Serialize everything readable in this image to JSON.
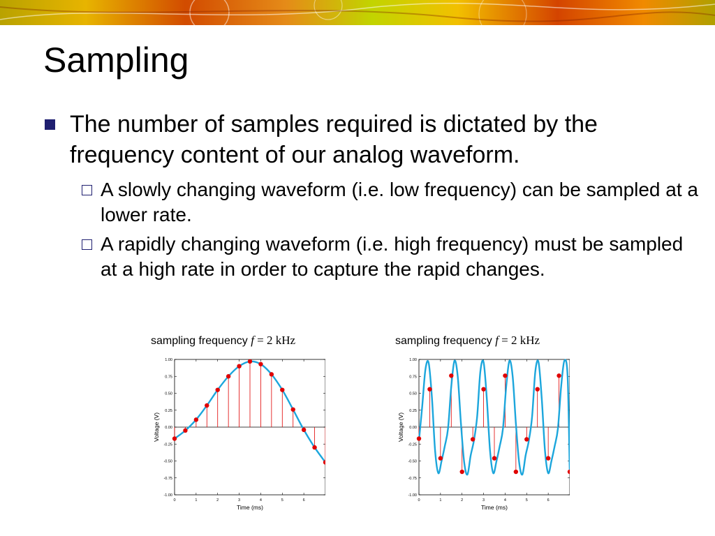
{
  "slide": {
    "title": "Sampling",
    "bullet": "The number of samples required is dictated by the frequency content of our analog waveform.",
    "sub_bullets": [
      "A slowly changing waveform (i.e. low frequency) can be sampled at a lower rate.",
      "A rapidly changing waveform (i.e. high frequency) must be sampled at a high rate in order to capture the rapid changes."
    ]
  },
  "colors": {
    "waveform": "#1ca6dc",
    "sample_point": "#e00000",
    "stem": "#e00000",
    "bullet_marker": "#1f1f70"
  },
  "chart_data": [
    {
      "type": "line",
      "caption_prefix": "sampling frequency ",
      "caption_var": "f",
      "caption_rest": " = 2 kHz",
      "xlabel": "Time (ms)",
      "ylabel": "Voltage (V)",
      "xlim": [
        0,
        7
      ],
      "ylim": [
        -1.0,
        1.0
      ],
      "xticks": [
        "0",
        "1",
        "2",
        "3",
        "4",
        "5",
        "6"
      ],
      "yticks": [
        "1.00",
        "0.75",
        "0.50",
        "0.25",
        "0.00",
        "-0.25",
        "-0.50",
        "-0.75",
        "-1.00"
      ],
      "series": [
        {
          "kind": "waveform",
          "x": [
            0,
            0.5,
            1,
            1.5,
            2,
            2.5,
            3,
            3.5,
            4,
            4.5,
            5,
            5.5,
            6,
            6.5,
            7
          ],
          "y": [
            -0.17,
            -0.05,
            0.11,
            0.32,
            0.55,
            0.75,
            0.9,
            0.97,
            0.93,
            0.78,
            0.55,
            0.26,
            -0.04,
            -0.3,
            -0.52
          ]
        },
        {
          "kind": "samples",
          "x": [
            0,
            0.5,
            1,
            1.5,
            2,
            2.5,
            3,
            3.5,
            4,
            4.5,
            5,
            5.5,
            6,
            6.5,
            7
          ],
          "y": [
            -0.17,
            -0.05,
            0.11,
            0.32,
            0.55,
            0.75,
            0.9,
            0.97,
            0.93,
            0.78,
            0.55,
            0.26,
            -0.04,
            -0.3,
            -0.52
          ]
        }
      ]
    },
    {
      "type": "line",
      "caption_prefix": "sampling frequency ",
      "caption_var": "f",
      "caption_rest": " = 2 kHz",
      "xlabel": "Time (ms)",
      "ylabel": "Voltage (V)",
      "xlim": [
        0,
        7
      ],
      "ylim": [
        -1.0,
        1.0
      ],
      "xticks": [
        "0",
        "1",
        "2",
        "3",
        "4",
        "5",
        "6"
      ],
      "yticks": [
        "1.00",
        "0.75",
        "0.50",
        "0.25",
        "0.00",
        "-0.25",
        "-0.50",
        "-0.75",
        "-1.00"
      ],
      "series": [
        {
          "kind": "waveform",
          "x": [
            0,
            0.15,
            0.3,
            0.45,
            0.6,
            0.75,
            0.9,
            1.05,
            1.2,
            1.35,
            1.5,
            1.65,
            1.8,
            1.95,
            2.1,
            2.25,
            2.4,
            2.55,
            2.7,
            2.85,
            3.0,
            3.15,
            3.3,
            3.45,
            3.6,
            3.75,
            3.9,
            4.05,
            4.2,
            4.35,
            4.5,
            4.65,
            4.8,
            4.95,
            5.1,
            5.25,
            5.4,
            5.55,
            5.7,
            5.85,
            6.0,
            6.15,
            6.3,
            6.45,
            6.6,
            6.75,
            6.9,
            7.0
          ],
          "y": [
            -0.2,
            0.3,
            0.85,
            0.95,
            0.45,
            -0.35,
            -0.68,
            -0.5,
            -0.28,
            -0.02,
            0.6,
            0.98,
            0.75,
            0.05,
            -0.52,
            -0.7,
            -0.42,
            -0.2,
            0.15,
            0.82,
            0.96,
            0.42,
            -0.35,
            -0.68,
            -0.5,
            -0.28,
            -0.02,
            0.6,
            0.98,
            0.75,
            0.05,
            -0.52,
            -0.7,
            -0.42,
            -0.2,
            0.15,
            0.82,
            0.96,
            0.42,
            -0.35,
            -0.68,
            -0.5,
            -0.28,
            -0.02,
            0.6,
            0.98,
            0.75,
            -0.66
          ]
        },
        {
          "kind": "samples",
          "x": [
            0,
            0.5,
            1,
            1.5,
            2,
            2.5,
            3,
            3.5,
            4,
            4.5,
            5,
            5.5,
            6,
            6.5,
            7
          ],
          "y": [
            -0.17,
            0.56,
            -0.46,
            0.76,
            -0.66,
            -0.18,
            0.56,
            -0.46,
            0.76,
            -0.66,
            -0.18,
            0.56,
            -0.46,
            0.76,
            -0.66
          ]
        }
      ]
    }
  ]
}
